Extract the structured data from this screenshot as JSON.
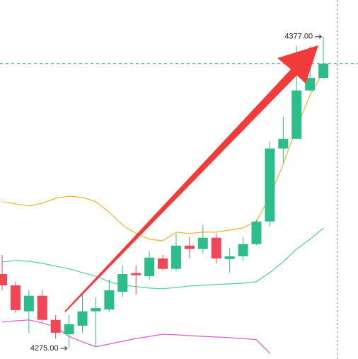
{
  "chart_data": {
    "type": "candlestick",
    "categories": [
      null,
      null,
      null,
      null,
      null,
      null,
      null,
      null,
      null,
      null,
      null,
      null,
      null,
      null,
      null,
      null,
      null,
      null,
      null,
      null,
      null,
      null,
      null,
      null,
      null
    ],
    "open": [
      4299.3,
      4295.6,
      4287.1,
      4292.2,
      4284.3,
      4279.6,
      4282.4,
      4287.1,
      4287.7,
      4293.5,
      4299.6,
      4298.6,
      4304.4,
      4301.0,
      4308.6,
      4307.5,
      4311.2,
      4304.2,
      4305.1,
      4309.1,
      4316.5,
      4340.4,
      4343.6,
      4359.4,
      4363.5
    ],
    "high": [
      4305.6,
      4296.8,
      4294.0,
      4294.0,
      4285.9,
      4285.9,
      4292.8,
      4291.7,
      4297.5,
      4302.1,
      4302.1,
      4306.8,
      4305.6,
      4312.6,
      4311.4,
      4315.3,
      4312.6,
      4307.9,
      4311.4,
      4317.2,
      4342.7,
      4350.8,
      4374.0,
      4374.0,
      4377.0
    ],
    "low": [
      4294.0,
      4286.6,
      4280.1,
      4283.6,
      4278.2,
      4275.0,
      4280.1,
      4275.5,
      4287.1,
      4291.7,
      4292.6,
      4297.5,
      4300.5,
      4300.3,
      4304.4,
      4306.1,
      4302.8,
      4299.8,
      4303.7,
      4308.8,
      4314.9,
      4335.7,
      4343.6,
      4358.9,
      4363.1
    ],
    "close": [
      4295.6,
      4287.5,
      4292.2,
      4284.3,
      4280.1,
      4282.9,
      4287.1,
      4288.2,
      4294.0,
      4299.3,
      4298.9,
      4304.7,
      4301.0,
      4308.6,
      4307.5,
      4311.2,
      4304.4,
      4305.1,
      4309.1,
      4316.5,
      4340.4,
      4343.6,
      4359.4,
      4363.5,
      4368.2
    ],
    "up_color": "#2dbd8a",
    "down_color": "#ef4757",
    "ylim": [
      4271.5,
      4389
    ],
    "price_line": {
      "value": 4368.2,
      "color": "#3aa3a0"
    },
    "series": [
      {
        "color": "#f0b429",
        "values": [
          4323.0,
          4322.3,
          4321.6,
          4322.5,
          4324.1,
          4324.8,
          4324.4,
          4323.0,
          4319.5,
          4315.3,
          4312.6,
          4310.7,
          4310.2,
          4313.0,
          4312.6,
          4313.0,
          4313.0,
          4313.7,
          4314.4,
          4316.7,
          4324.6,
          4335.3,
          4347.3,
          4357.8,
          4365.4
        ]
      },
      {
        "color": "#4dd0a0",
        "values": [
          4303.3,
          4303.7,
          4303.5,
          4302.8,
          4301.9,
          4301.0,
          4299.8,
          4298.6,
          4296.8,
          4295.6,
          4295.2,
          4294.7,
          4294.5,
          4294.9,
          4295.4,
          4295.6,
          4295.9,
          4296.1,
          4296.3,
          4296.8,
          4299.8,
          4303.3,
          4307.5,
          4310.7,
          4314.4
        ]
      },
      {
        "color": "#d85ad0",
        "values": [
          4283.6,
          4284.0,
          4284.3,
          4283.3,
          4282.0,
          4278.9,
          4277.1,
          4275.5,
          4276.4,
          4277.3,
          4278.2,
          4278.9,
          4279.6,
          4279.4,
          4279.2,
          4278.9,
          4278.7,
          4278.5,
          4278.2,
          4277.8,
          4273.4,
          null,
          null,
          null,
          null
        ]
      }
    ],
    "annotations": [
      {
        "text": "4377.00",
        "value": 4377.0
      },
      {
        "text": "4275.00",
        "value": 4275.0
      }
    ]
  }
}
